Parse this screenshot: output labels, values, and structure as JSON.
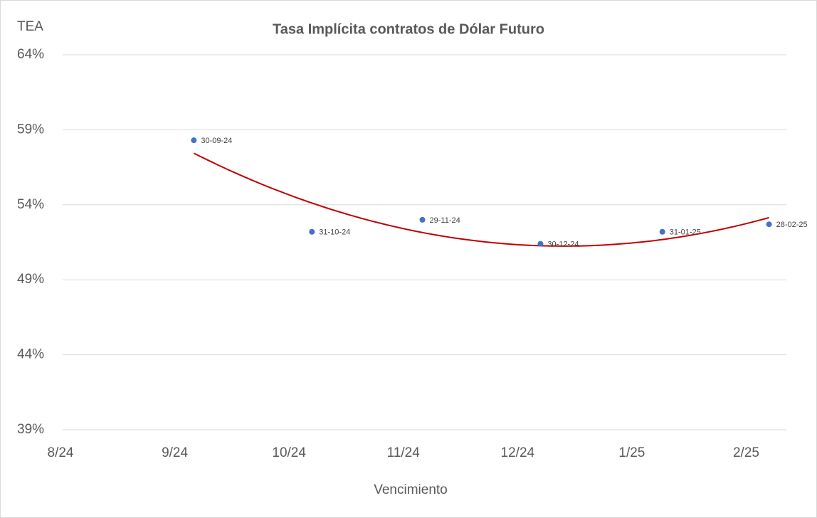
{
  "chart_data": {
    "type": "scatter",
    "title": "Tasa Implícita contratos de Dólar Futuro",
    "y_label": "TEA",
    "x_label": "Vencimiento",
    "x": [
      45565,
      45596,
      45625,
      45656,
      45688,
      45716
    ],
    "values": [
      58.3,
      52.2,
      53.0,
      51.4,
      52.2,
      52.7
    ],
    "point_labels": [
      "30-09-24",
      "31-10-24",
      "29-11-24",
      "30-12-24",
      "31-01-25",
      "28-02-25"
    ],
    "color": "#4472c4",
    "trendline": {
      "type": "polynomial",
      "order": 2,
      "color": "#c00000"
    },
    "xlim": [
      45530,
      45720
    ],
    "xticks": [
      {
        "value": 45530,
        "label": "8/24"
      },
      {
        "value": 45560,
        "label": "9/24"
      },
      {
        "value": 45590,
        "label": "10/24"
      },
      {
        "value": 45620,
        "label": "11/24"
      },
      {
        "value": 45650,
        "label": "12/24"
      },
      {
        "value": 45680,
        "label": "1/25"
      },
      {
        "value": 45710,
        "label": "2/25"
      }
    ],
    "ylim": [
      39,
      64
    ],
    "yticks": [
      {
        "value": 39,
        "label": "39%"
      },
      {
        "value": 44,
        "label": "44%"
      },
      {
        "value": 49,
        "label": "49%"
      },
      {
        "value": 54,
        "label": "54%"
      },
      {
        "value": 59,
        "label": "59%"
      },
      {
        "value": 64,
        "label": "64%"
      }
    ],
    "grid": true
  }
}
